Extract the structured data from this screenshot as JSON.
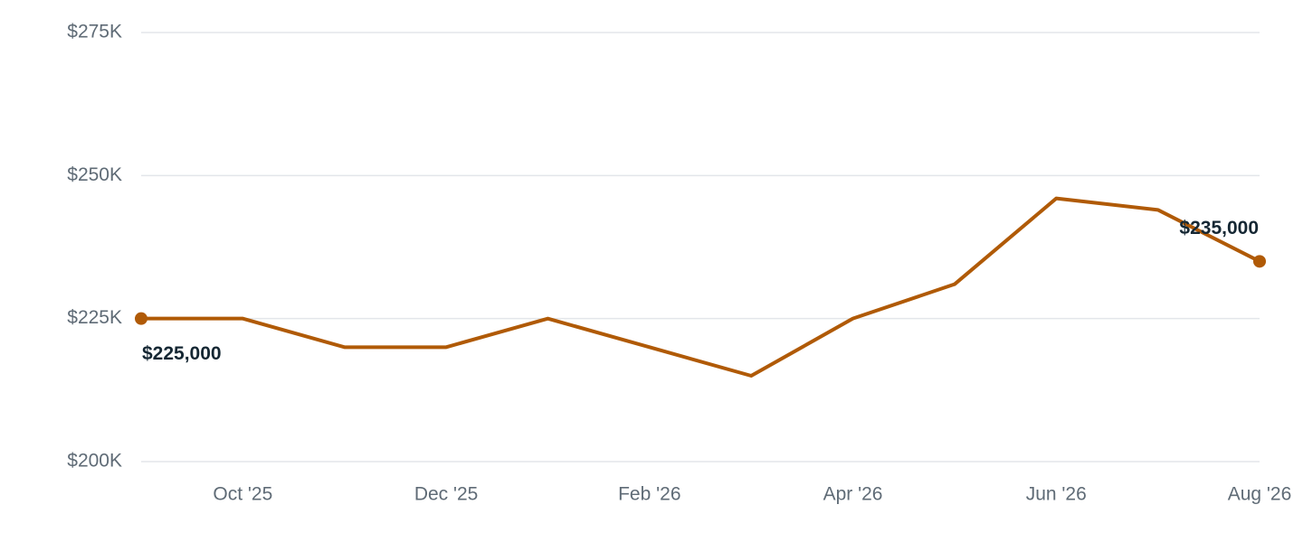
{
  "chart_data": {
    "type": "line",
    "categories": [
      null,
      "Oct '25",
      null,
      "Dec '25",
      null,
      "Feb '26",
      null,
      "Apr '26",
      null,
      "Jun '26",
      null,
      "Aug '26"
    ],
    "values": [
      225000,
      225000,
      220000,
      220000,
      225000,
      220000,
      215000,
      225000,
      231000,
      246000,
      244000,
      235000
    ],
    "value_labels": [
      "$225,000",
      null,
      null,
      null,
      null,
      null,
      null,
      null,
      null,
      null,
      null,
      "$235,000"
    ],
    "color": "#b05a06",
    "ylim": [
      200000,
      275000
    ],
    "yticks": [
      {
        "value": 200000,
        "label": "$200K"
      },
      {
        "value": 225000,
        "label": "$225K"
      },
      {
        "value": 250000,
        "label": "$250K"
      },
      {
        "value": 275000,
        "label": "$275K"
      }
    ],
    "grid": true
  }
}
